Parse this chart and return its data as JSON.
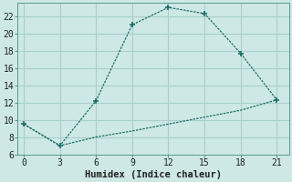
{
  "xlabel": "Humidex (Indice chaleur)",
  "background_color": "#cde8e5",
  "grid_color": "#aacfcc",
  "line_color": "#1e6e68",
  "series1_x": [
    0,
    3,
    6,
    9,
    12,
    15,
    18,
    21
  ],
  "series1_y": [
    9.5,
    7.0,
    12.2,
    21.0,
    23.0,
    22.3,
    17.7,
    12.3
  ],
  "series2_x": [
    0,
    3,
    6,
    9,
    12,
    15,
    18,
    21
  ],
  "series2_y": [
    9.5,
    7.0,
    8.0,
    8.7,
    9.5,
    10.3,
    11.1,
    12.3
  ],
  "xlim": [
    -0.5,
    22
  ],
  "ylim": [
    6,
    23.5
  ],
  "xticks": [
    0,
    3,
    6,
    9,
    12,
    15,
    18,
    21
  ],
  "yticks": [
    6,
    8,
    10,
    12,
    14,
    16,
    18,
    20,
    22
  ],
  "label_fontsize": 7.5,
  "tick_fontsize": 7
}
